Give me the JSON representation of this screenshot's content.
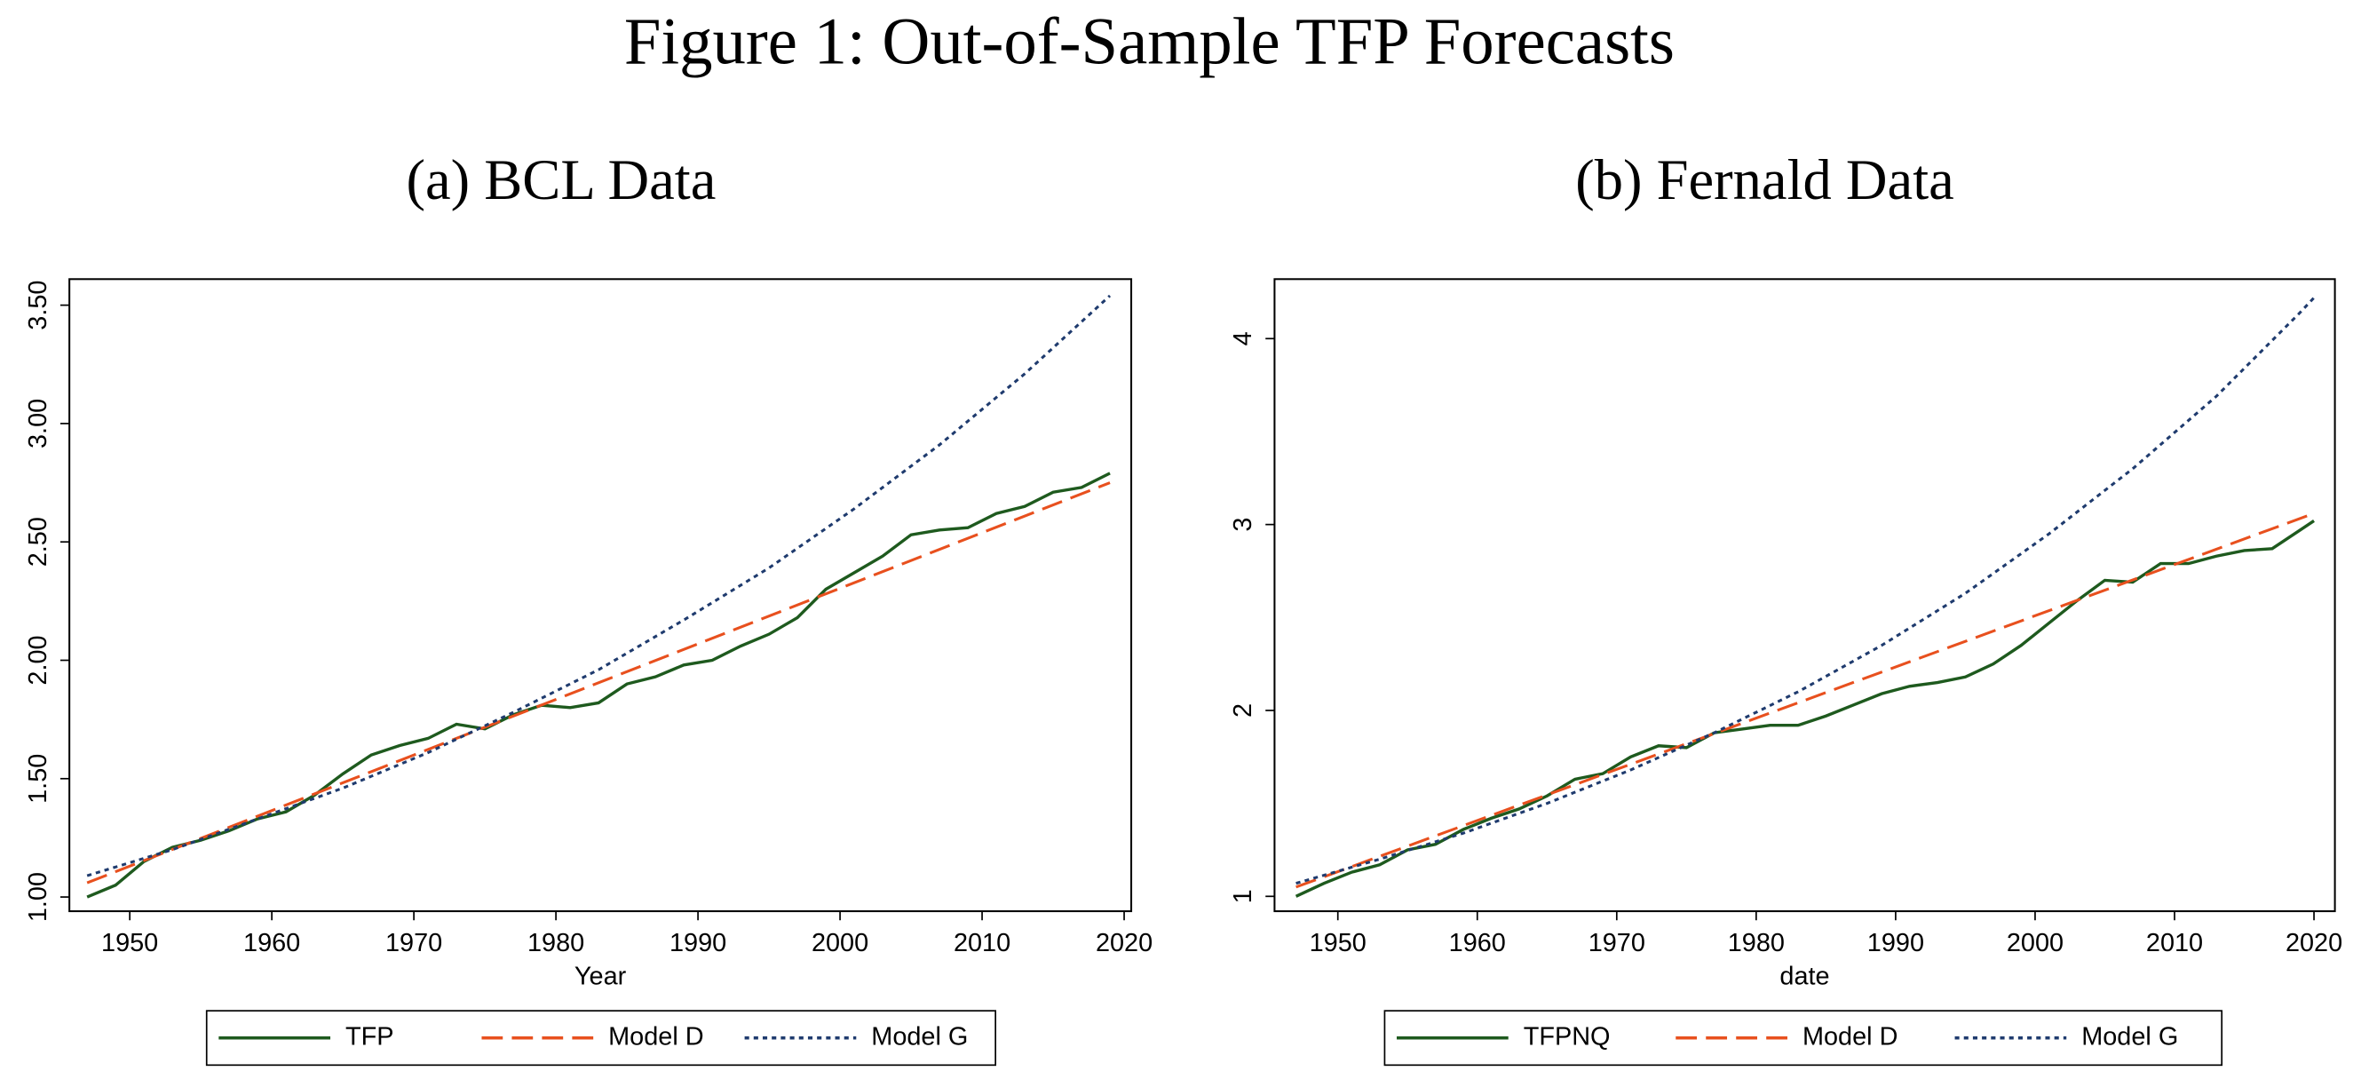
{
  "title": "Figure 1: Out-of-Sample TFP Forecasts",
  "chart_data": [
    {
      "type": "line",
      "title": "(a) BCL Data",
      "xlabel": "Year",
      "xlim": [
        1945.75,
        2020.5
      ],
      "xticks": [
        1950,
        1960,
        1970,
        1980,
        1990,
        2000,
        2010,
        2020
      ],
      "ylim": [
        0.94,
        3.61
      ],
      "yticks": [
        {
          "value": 1,
          "label": "1.00"
        },
        {
          "value": 1.5,
          "label": "1.50"
        },
        {
          "value": 2,
          "label": "2.00"
        },
        {
          "value": 2.5,
          "label": "2.50"
        },
        {
          "value": 3,
          "label": "3.00"
        },
        {
          "value": 3.5,
          "label": "3.50"
        }
      ],
      "grid": false,
      "legend": "bottom",
      "series": [
        {
          "name": "TFP",
          "color": "#1e5a1e",
          "dash": "solid",
          "x": [
            1947,
            1949,
            1951,
            1953,
            1955,
            1957,
            1959,
            1961,
            1963,
            1965,
            1967,
            1969,
            1971,
            1973,
            1975,
            1977,
            1979,
            1981,
            1983,
            1985,
            1987,
            1989,
            1991,
            1993,
            1995,
            1997,
            1999,
            2001,
            2003,
            2005,
            2007,
            2009,
            2011,
            2013,
            2015,
            2017,
            2019
          ],
          "values": [
            1.0,
            1.05,
            1.15,
            1.21,
            1.24,
            1.28,
            1.33,
            1.36,
            1.43,
            1.52,
            1.6,
            1.64,
            1.67,
            1.73,
            1.71,
            1.77,
            1.81,
            1.8,
            1.82,
            1.9,
            1.93,
            1.98,
            2.0,
            2.06,
            2.11,
            2.18,
            2.3,
            2.37,
            2.44,
            2.53,
            2.55,
            2.56,
            2.62,
            2.65,
            2.71,
            2.73,
            2.79
          ]
        },
        {
          "name": "Model D",
          "color": "#e8501e",
          "dash": "dashed",
          "x": [
            1947,
            2019
          ],
          "values": [
            1.06,
            2.75
          ]
        },
        {
          "name": "Model G",
          "color": "#1f3b6e",
          "dash": "dotted",
          "x": [
            1947,
            1953,
            1959,
            1965,
            1971,
            1977,
            1983,
            1989,
            1995,
            2001,
            2007,
            2013,
            2019
          ],
          "values": [
            1.09,
            1.2,
            1.33,
            1.46,
            1.61,
            1.78,
            1.96,
            2.17,
            2.39,
            2.64,
            2.91,
            3.21,
            3.54
          ]
        }
      ]
    },
    {
      "type": "line",
      "title": "(b) Fernald Data",
      "xlabel": "date",
      "xlim": [
        1945.46,
        2021.5
      ],
      "xticks": [
        1950,
        1960,
        1970,
        1980,
        1990,
        2000,
        2010,
        2020
      ],
      "ylim": [
        0.92,
        4.32
      ],
      "yticks": [
        1,
        2,
        3,
        4
      ],
      "grid": false,
      "legend": "bottom",
      "series": [
        {
          "name": "TFPNQ",
          "color": "#1e5a1e",
          "dash": "solid",
          "x": [
            1947,
            1949,
            1951,
            1953,
            1955,
            1957,
            1959,
            1961,
            1963,
            1965,
            1967,
            1969,
            1971,
            1973,
            1975,
            1977,
            1979,
            1981,
            1983,
            1985,
            1987,
            1989,
            1991,
            1993,
            1995,
            1997,
            1999,
            2001,
            2003,
            2005,
            2007,
            2009,
            2011,
            2013,
            2015,
            2017,
            2019,
            2020
          ],
          "values": [
            1.0,
            1.07,
            1.13,
            1.17,
            1.25,
            1.28,
            1.36,
            1.42,
            1.47,
            1.54,
            1.63,
            1.66,
            1.75,
            1.81,
            1.8,
            1.88,
            1.9,
            1.92,
            1.92,
            1.97,
            2.03,
            2.09,
            2.13,
            2.15,
            2.18,
            2.25,
            2.35,
            2.47,
            2.59,
            2.7,
            2.69,
            2.79,
            2.79,
            2.83,
            2.86,
            2.87,
            2.97,
            3.02
          ]
        },
        {
          "name": "Model D",
          "color": "#e8501e",
          "dash": "dashed",
          "x": [
            1947,
            2020
          ],
          "values": [
            1.05,
            3.06
          ]
        },
        {
          "name": "Model G",
          "color": "#1f3b6e",
          "dash": "dotted",
          "x": [
            1947,
            1953,
            1959,
            1965,
            1971,
            1977,
            1983,
            1989,
            1995,
            2001,
            2007,
            2013,
            2019,
            2020
          ],
          "values": [
            1.07,
            1.2,
            1.34,
            1.5,
            1.68,
            1.88,
            2.1,
            2.35,
            2.63,
            2.95,
            3.3,
            3.69,
            4.14,
            4.22
          ]
        }
      ]
    }
  ]
}
